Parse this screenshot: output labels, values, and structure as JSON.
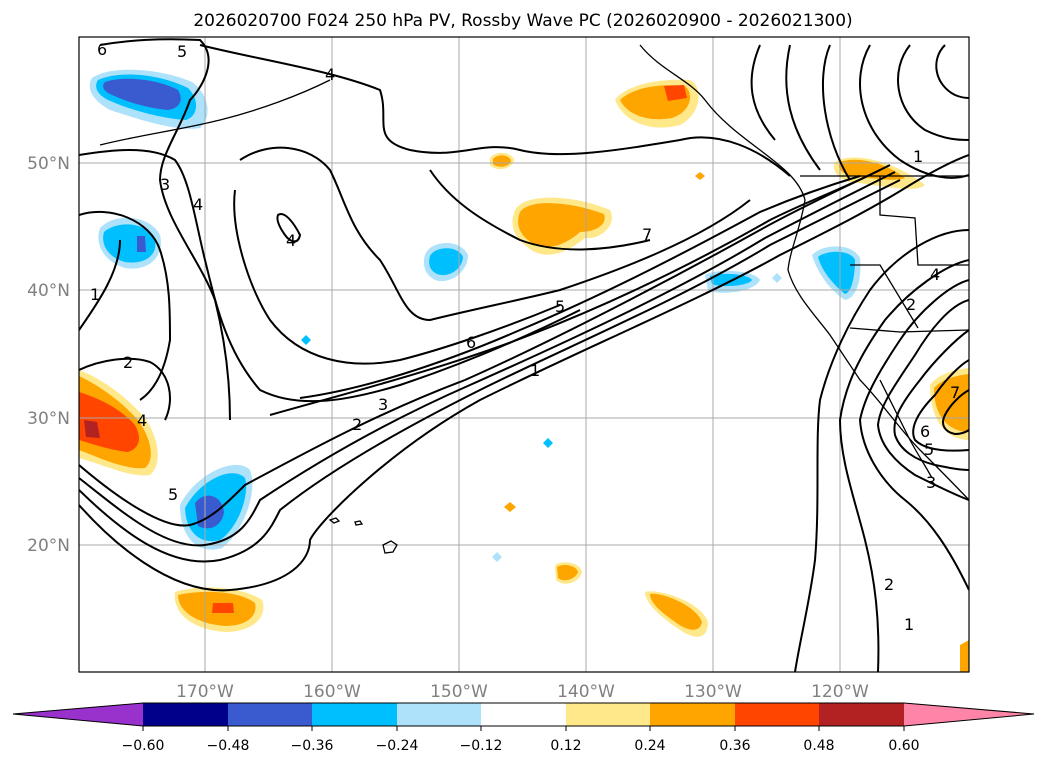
{
  "title": "2026020700 F024 250 hPa PV, Rossby Wave PC (2026020900 - 2026021300)",
  "map": {
    "lat_labels": [
      "50°N",
      "40°N",
      "30°N",
      "20°N"
    ],
    "lon_labels": [
      "170°W",
      "160°W",
      "150°W",
      "140°W",
      "130°W",
      "120°W"
    ]
  },
  "contour_labels": {
    "c6a": "6",
    "c5a": "5",
    "c4a": "4",
    "c3a": "3",
    "c4b": "4",
    "c4c": "4",
    "c1a": "1",
    "c2a": "2",
    "c4d": "4",
    "c5b": "5",
    "c7a": "7",
    "c5c": "5",
    "c6b": "6",
    "c1b": "1",
    "c3b": "3",
    "c2b": "2",
    "c1c": "1",
    "c2c": "2",
    "c4e": "4",
    "c7b": "7",
    "c6c": "6",
    "c5d": "5",
    "c3c": "3",
    "c2d": "2",
    "c1d": "1"
  },
  "colorbar": {
    "ticks": [
      "−0.60",
      "−0.48",
      "−0.36",
      "−0.24",
      "−0.12",
      "0.12",
      "0.24",
      "0.36",
      "0.48",
      "0.60"
    ],
    "colors": {
      "under": "#9932cc",
      "c1": "#00008b",
      "c2": "#3a5bcf",
      "c3": "#00bfff",
      "c4": "#ade2fa",
      "c5": "#ffffff",
      "c6": "#ffe88a",
      "c7": "#ffa500",
      "c8": "#ff4500",
      "c9": "#b22222",
      "over": "#ff85a8"
    }
  }
}
